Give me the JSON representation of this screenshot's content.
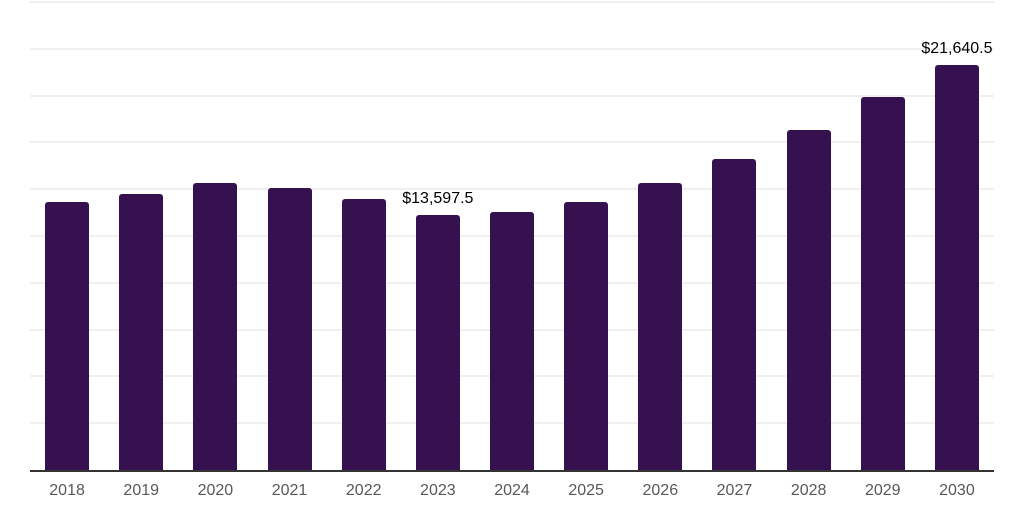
{
  "chart_data": {
    "type": "bar",
    "title": "",
    "xlabel": "",
    "ylabel": "",
    "legend": "none",
    "grid": "horizontal-only",
    "ylim": [
      0,
      25000
    ],
    "gridline_interval": 2500,
    "categories": [
      "2018",
      "2019",
      "2020",
      "2021",
      "2022",
      "2023",
      "2024",
      "2025",
      "2026",
      "2027",
      "2028",
      "2029",
      "2030"
    ],
    "values": [
      14300,
      14750,
      15330,
      15060,
      14480,
      13597.5,
      13780,
      14320,
      15330,
      16610,
      18160,
      19930,
      21640.5
    ],
    "value_labels": [
      "",
      "",
      "",
      "",
      "",
      "$13,597.5",
      "",
      "",
      "",
      "",
      "",
      "",
      "$21,640.5"
    ],
    "colors": {
      "bar": "#35124F",
      "gridline": "#f0f0f2",
      "axis_line": "#333333",
      "tick_label": "#58585B",
      "value_label": "#000000",
      "background": "#ffffff"
    }
  }
}
